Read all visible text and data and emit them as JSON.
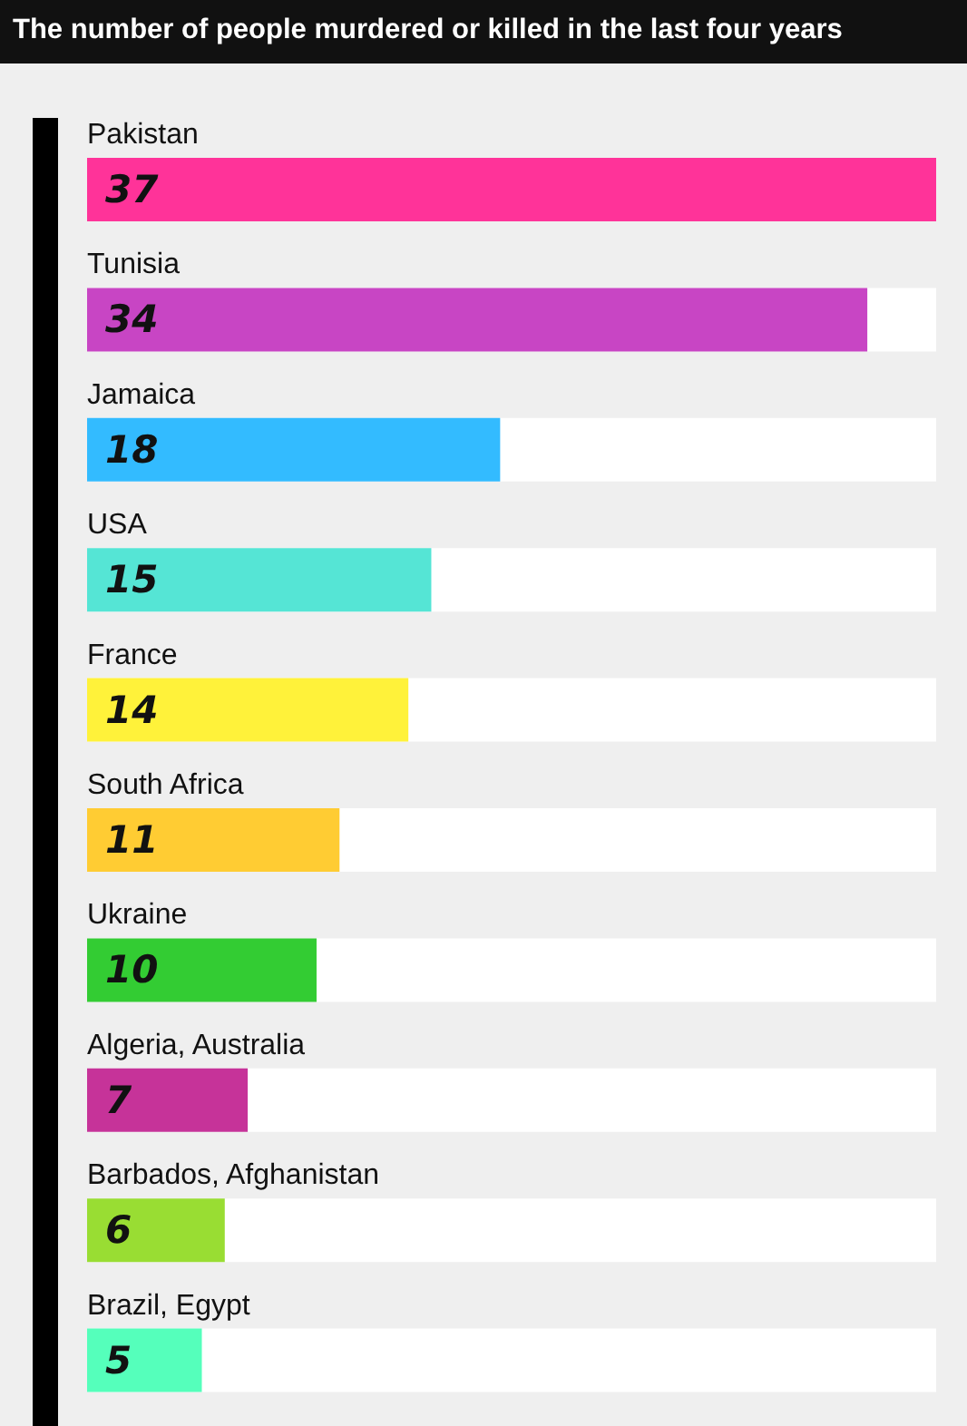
{
  "chart_data": {
    "type": "bar",
    "orientation": "horizontal",
    "title": "The number of people murdered or killed in the last four years",
    "categories": [
      "Pakistan",
      "Tunisia",
      "Jamaica",
      "USA",
      "France",
      "South Africa",
      "Ukraine",
      "Algeria, Australia",
      "Barbados, Afghanistan",
      "Brazil, Egypt"
    ],
    "values": [
      37,
      34,
      18,
      15,
      14,
      11,
      10,
      7,
      6,
      5
    ],
    "colors": [
      "#ff3399",
      "#c845c4",
      "#33bbff",
      "#55e5d5",
      "#fff23a",
      "#ffcc33",
      "#33cc33",
      "#c63399",
      "#99dd33",
      "#55ffbb"
    ],
    "data_labels": true
  }
}
